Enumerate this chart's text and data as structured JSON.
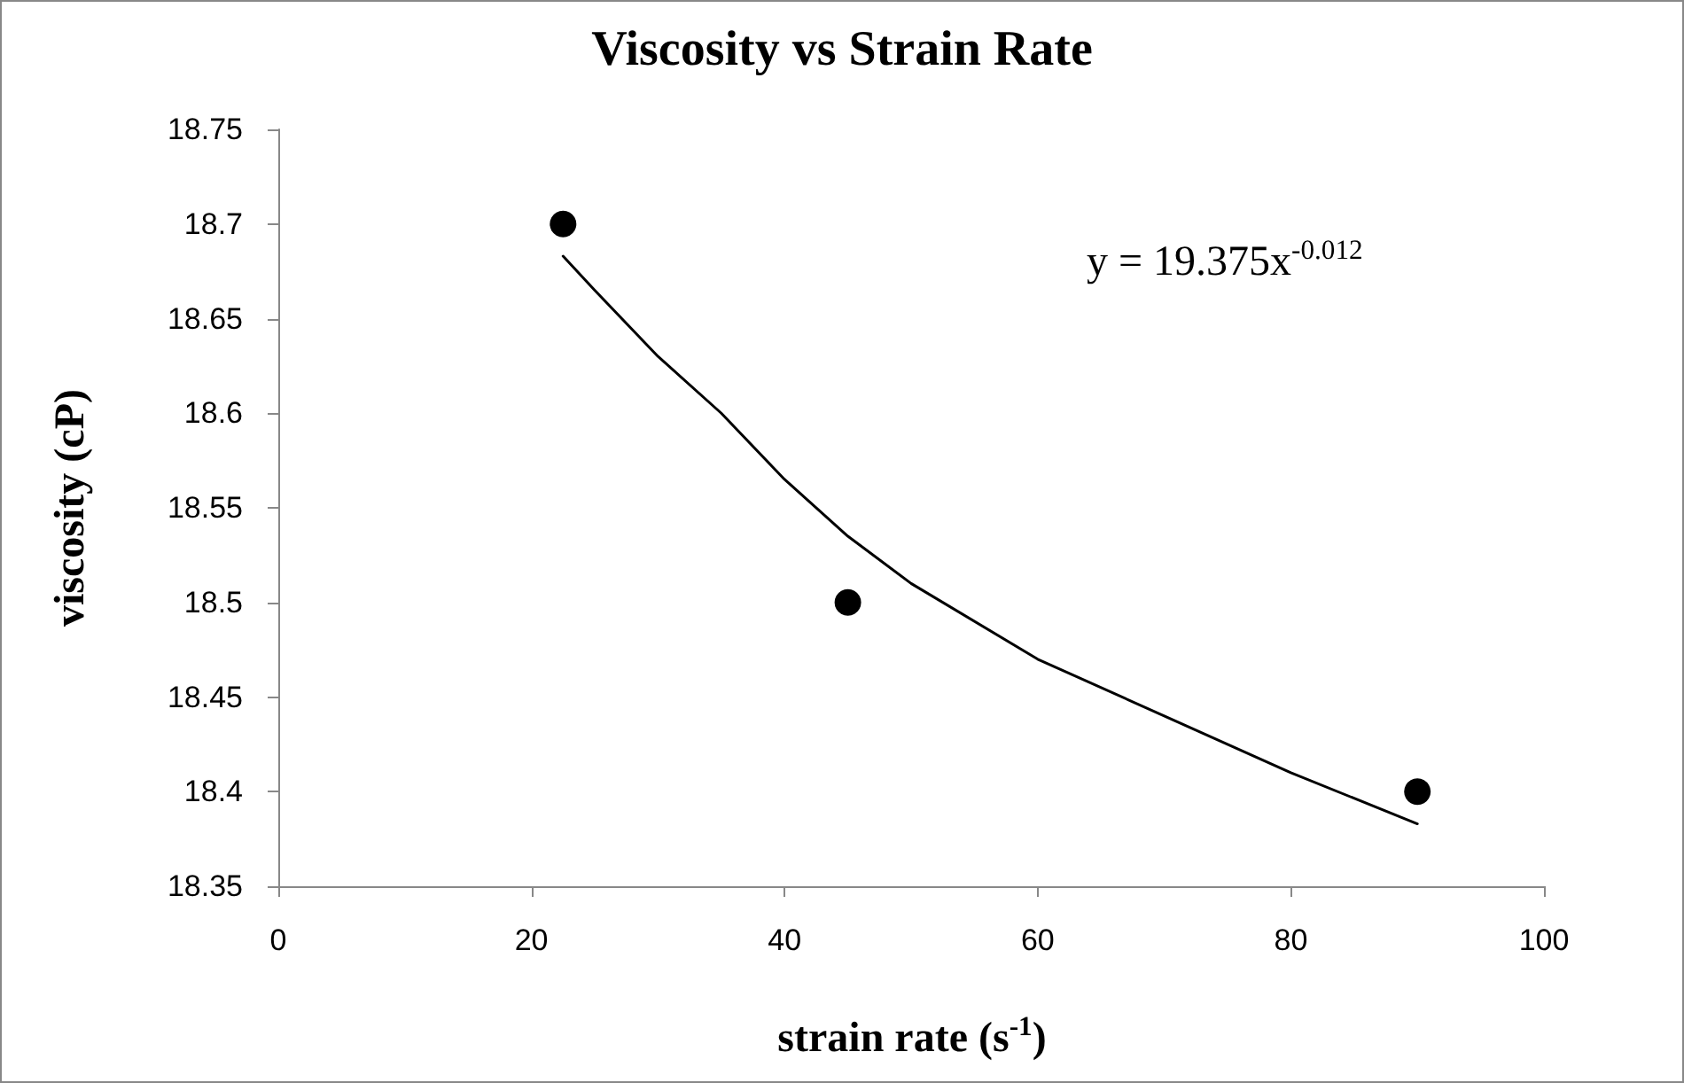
{
  "chart_data": {
    "type": "scatter",
    "title": "Viscosity vs Strain Rate",
    "xlabel": "strain rate (s$^{-1}$)",
    "ylabel": "viscosity (cP)",
    "annotations": [
      "y = 19.375x$^{-0.012}$"
    ],
    "series": [
      {
        "color": "#000000",
        "marker": "circle",
        "x": [
          22.5,
          45,
          90
        ],
        "values": [
          18.7,
          18.5,
          18.4
        ]
      },
      {
        "type": "line",
        "color": "#000000",
        "marker": "none",
        "line_style": "solid",
        "x": [
          22.5,
          25,
          30,
          35,
          40,
          45,
          50,
          60,
          70,
          80,
          90
        ],
        "values": [
          18.683,
          18.665,
          18.63,
          18.6,
          18.565,
          18.535,
          18.51,
          18.47,
          18.44,
          18.41,
          18.383
        ]
      }
    ],
    "xlim": [
      0,
      100
    ],
    "xticks": [
      0,
      20,
      40,
      60,
      80,
      100
    ],
    "ylim": [
      18.35,
      18.75
    ],
    "yticks": [
      18.35,
      18.4,
      18.45,
      18.5,
      18.55,
      18.6,
      18.65,
      18.7,
      18.75
    ],
    "grid": false
  }
}
